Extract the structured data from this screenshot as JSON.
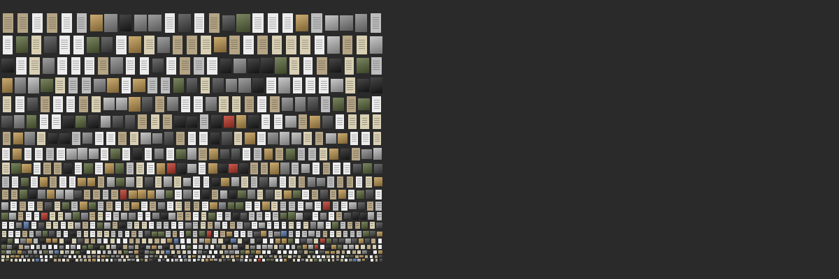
{
  "app": {
    "title": "",
    "background_color": "#2a2a2a"
  },
  "mosaic": {
    "row_counts": [
      26,
      27,
      28,
      29,
      30,
      31,
      33,
      35,
      37,
      40,
      42,
      44,
      48,
      52,
      56,
      60,
      66,
      72,
      80,
      88
    ],
    "palette": {
      "paper_white": "#ececec",
      "paper_cream": "#d9d0b4",
      "sepia": "#b5a585",
      "light_gray": "#bdbdbd",
      "mid_gray": "#8a8a8a",
      "dark_photo": "#4a4a4a",
      "black_photo": "#1e1e1e",
      "green_photo": "#5d6b3e",
      "blue_photo": "#5a7db5",
      "red_photo": "#c0392b",
      "tan_photo": "#c29a52"
    }
  }
}
